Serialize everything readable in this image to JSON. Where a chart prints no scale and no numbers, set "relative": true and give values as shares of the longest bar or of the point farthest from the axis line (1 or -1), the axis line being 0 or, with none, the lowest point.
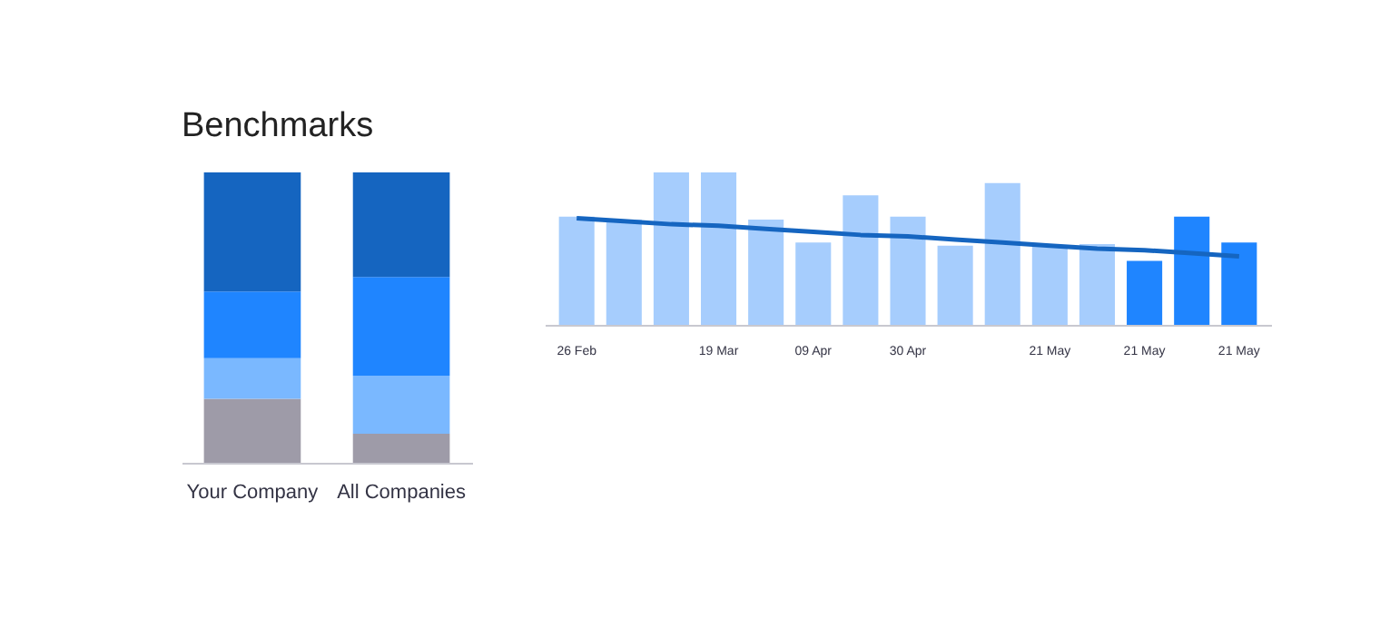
{
  "chart_data": [
    {
      "type": "bar",
      "title": "Benchmarks",
      "categories": [
        "Your Company",
        "All Companies"
      ],
      "stacked": true,
      "relative": true,
      "series": [
        {
          "color": "#9e9ba8",
          "values": [
            0.22,
            0.1
          ]
        },
        {
          "color": "#7ab8ff",
          "values": [
            0.14,
            0.2
          ]
        },
        {
          "color": "#1f85ff",
          "values": [
            0.23,
            0.34
          ]
        },
        {
          "color": "#1565c0",
          "values": [
            0.41,
            0.36
          ]
        }
      ]
    },
    {
      "type": "bar",
      "relative": true,
      "tick_labels": "x",
      "categories": [
        "26 Feb",
        null,
        null,
        "19 Mar",
        null,
        "09 Apr",
        null,
        "30 Apr",
        null,
        null,
        "21 May",
        null,
        "21 May",
        null,
        "21 May"
      ],
      "series": [
        {
          "colors": [
            "#a6cdfd",
            "#a6cdfd",
            "#a6cdfd",
            "#a6cdfd",
            "#a6cdfd",
            "#a6cdfd",
            "#a6cdfd",
            "#a6cdfd",
            "#a6cdfd",
            "#a6cdfd",
            "#a6cdfd",
            "#a6cdfd",
            "#1f85ff",
            "#1f85ff",
            "#1f85ff"
          ],
          "values": [
            0.71,
            0.69,
            1,
            1,
            0.69,
            0.54,
            0.85,
            0.71,
            0.52,
            0.93,
            0.52,
            0.53,
            0.42,
            0.71,
            0.54
          ]
        },
        {
          "type": "line",
          "color": "#1565c0",
          "values": [
            0.7,
            0.68,
            0.66,
            0.65,
            0.63,
            0.61,
            0.59,
            0.58,
            0.56,
            0.54,
            0.52,
            0.5,
            0.49,
            0.47,
            0.45
          ]
        }
      ]
    }
  ]
}
